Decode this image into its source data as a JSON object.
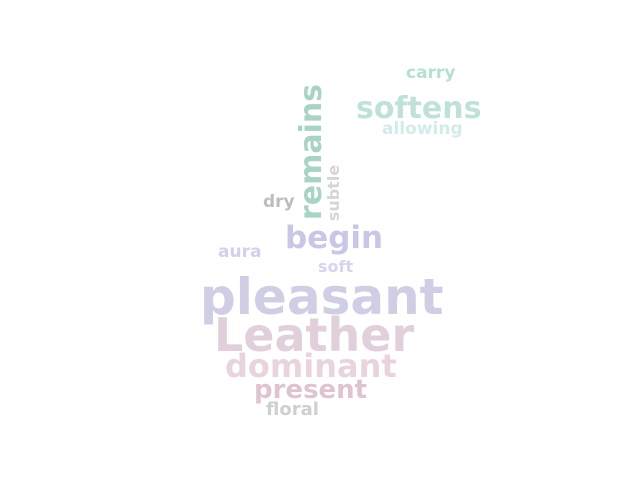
{
  "words": [
    {
      "text": "carry",
      "color": "#b6e0cf"
    },
    {
      "text": "softens",
      "color": "#bfe1da"
    },
    {
      "text": "allowing",
      "color": "#d3ecea"
    },
    {
      "text": "remains",
      "color": "#a9d4c4"
    },
    {
      "text": "subtle",
      "color": "#d5d5d5"
    },
    {
      "text": "dry",
      "color": "#bdbdbd"
    },
    {
      "text": "begin",
      "color": "#c9c7e6"
    },
    {
      "text": "aura",
      "color": "#d2d1ec"
    },
    {
      "text": "soft",
      "color": "#d6d5ee"
    },
    {
      "text": "pleasant",
      "color": "#d0cee5"
    },
    {
      "text": "Leather",
      "color": "#e1cfdc"
    },
    {
      "text": "dominant",
      "color": "#e8d3df"
    },
    {
      "text": "present",
      "color": "#dfc3d3"
    },
    {
      "text": "floral",
      "color": "#cfcfcf"
    }
  ]
}
